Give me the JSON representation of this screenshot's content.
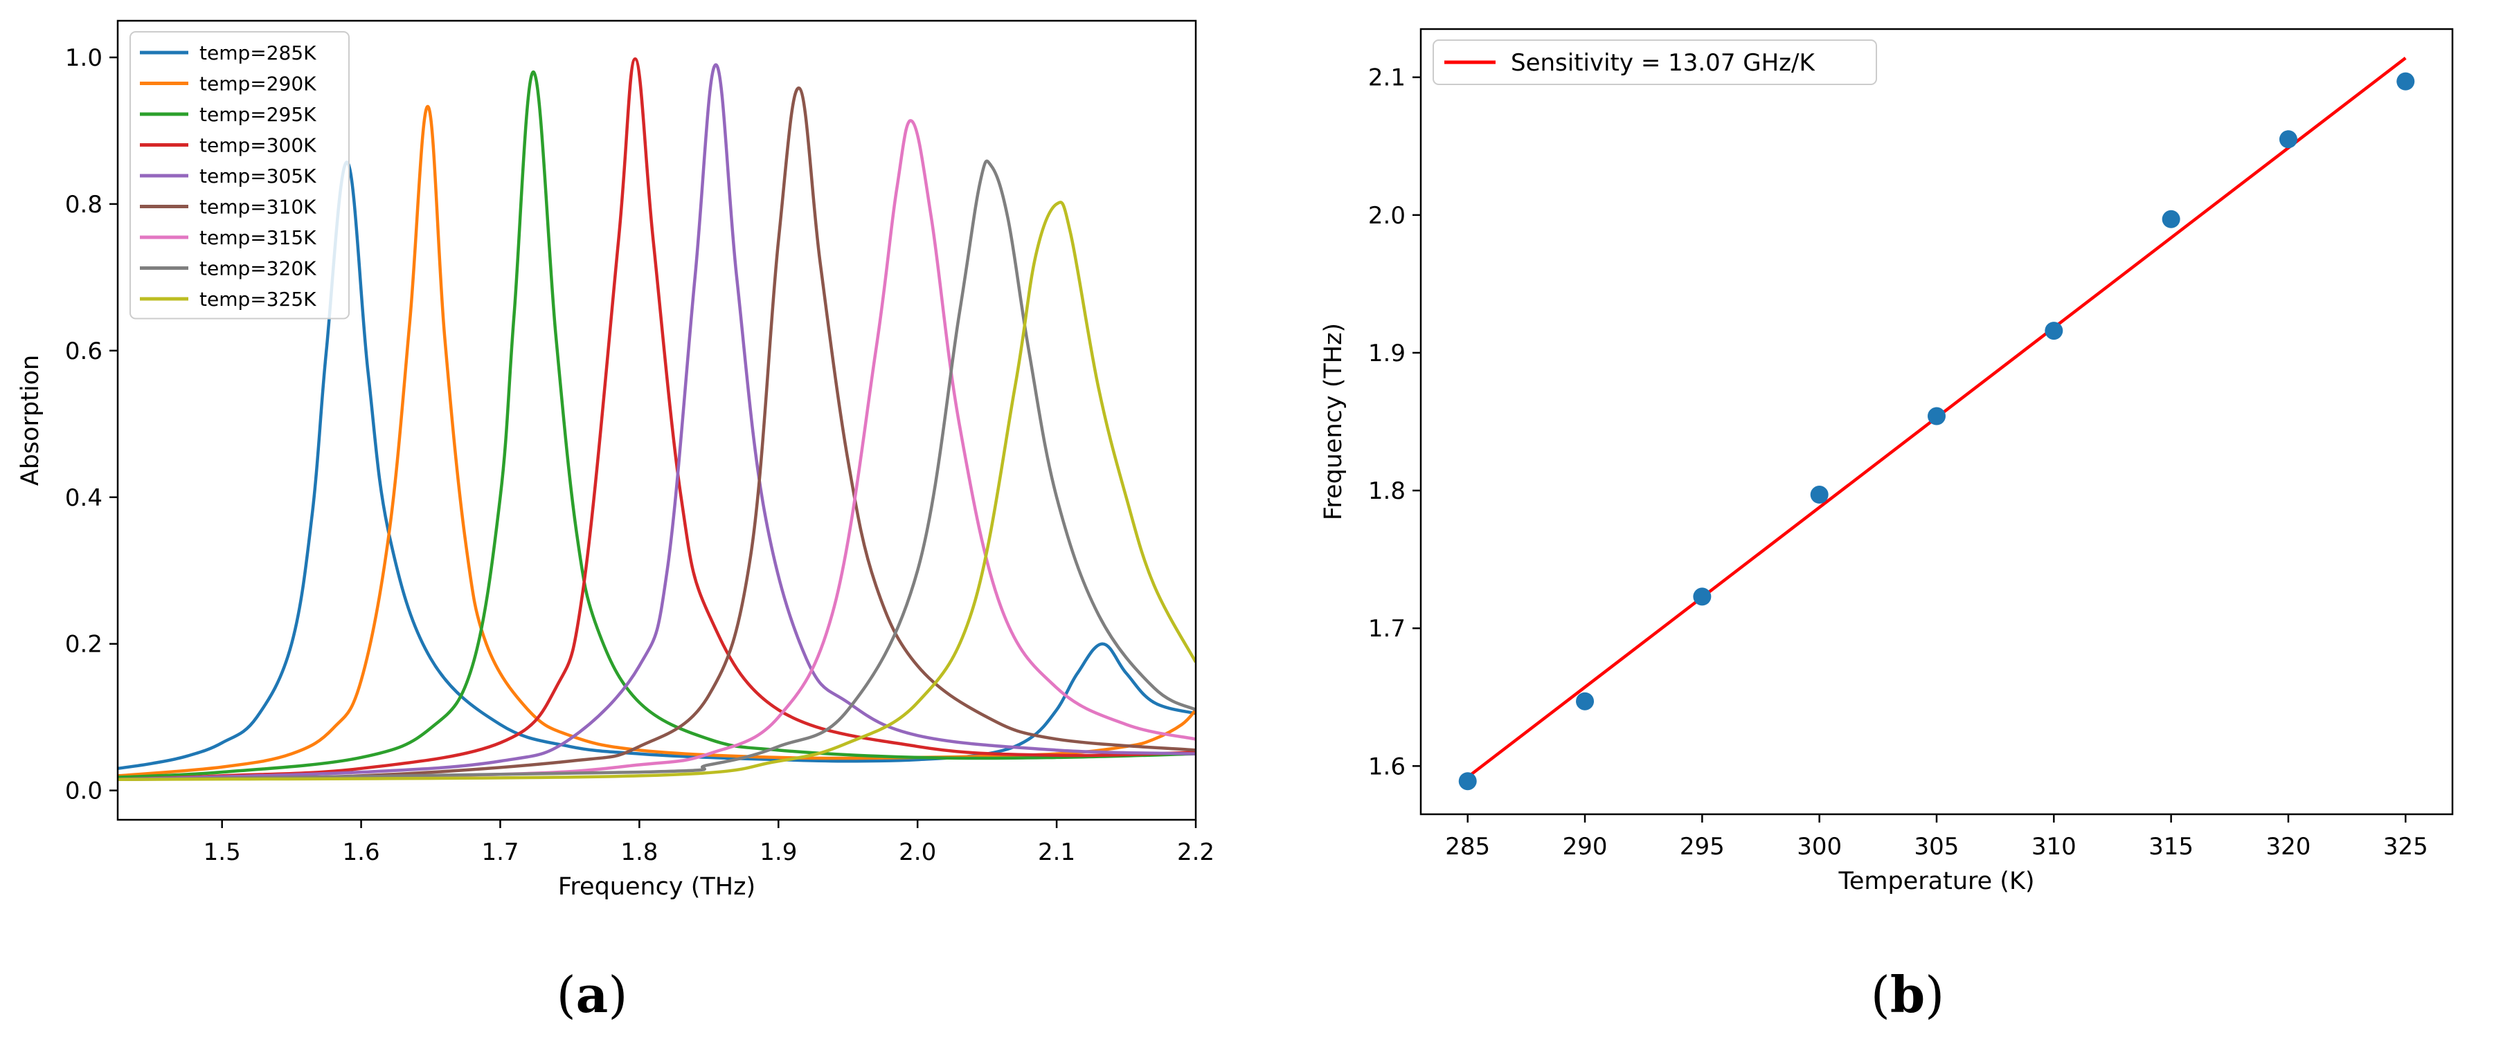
{
  "captions": {
    "a": "a",
    "b": "b"
  },
  "chart_data": [
    {
      "id": "a",
      "type": "line",
      "title": "",
      "xlabel": "Frequency (THz)",
      "ylabel": "Absorption",
      "xlim": [
        1.425,
        2.2
      ],
      "ylim": [
        -0.04,
        1.05
      ],
      "xticks": [
        1.5,
        1.6,
        1.7,
        1.8,
        1.9,
        2.0,
        2.1,
        2.2
      ],
      "xtick_labels": [
        "1.5",
        "1.6",
        "1.7",
        "1.8",
        "1.9",
        "2.0",
        "2.1",
        "2.2"
      ],
      "yticks": [
        0.0,
        0.2,
        0.4,
        0.6,
        0.8,
        1.0
      ],
      "ytick_labels": [
        "0.0",
        "0.2",
        "0.4",
        "0.6",
        "0.8",
        "1.0"
      ],
      "grid": false,
      "legend_position": "top-left",
      "series": [
        {
          "name": "temp=285K",
          "color": "#1f77b4",
          "x": [
            1.425,
            1.45,
            1.475,
            1.5,
            1.525,
            1.55,
            1.565,
            1.575,
            1.59,
            1.605,
            1.62,
            1.65,
            1.7,
            1.75,
            1.8,
            1.85,
            1.9,
            1.95,
            2.0,
            2.05,
            2.08,
            2.1,
            2.115,
            2.133,
            2.15,
            2.17,
            2.2
          ],
          "y": [
            0.03,
            0.037,
            0.047,
            0.065,
            0.1,
            0.2,
            0.38,
            0.6,
            0.857,
            0.57,
            0.35,
            0.18,
            0.09,
            0.06,
            0.05,
            0.045,
            0.042,
            0.04,
            0.042,
            0.05,
            0.07,
            0.11,
            0.16,
            0.2,
            0.16,
            0.12,
            0.105
          ]
        },
        {
          "name": "temp=290K",
          "color": "#ff7f0e",
          "x": [
            1.425,
            1.5,
            1.55,
            1.58,
            1.6,
            1.62,
            1.635,
            1.648,
            1.66,
            1.675,
            1.69,
            1.72,
            1.75,
            1.8,
            1.9,
            2.0,
            2.1,
            2.15,
            2.17,
            2.19,
            2.2
          ],
          "y": [
            0.02,
            0.032,
            0.05,
            0.085,
            0.15,
            0.35,
            0.64,
            0.933,
            0.62,
            0.34,
            0.2,
            0.11,
            0.075,
            0.055,
            0.045,
            0.045,
            0.05,
            0.06,
            0.07,
            0.09,
            0.11
          ]
        },
        {
          "name": "temp=295K",
          "color": "#2ca02c",
          "x": [
            1.425,
            1.5,
            1.6,
            1.65,
            1.68,
            1.7,
            1.71,
            1.724,
            1.74,
            1.755,
            1.77,
            1.8,
            1.85,
            1.9,
            2.0,
            2.1,
            2.2
          ],
          "y": [
            0.018,
            0.025,
            0.045,
            0.085,
            0.17,
            0.4,
            0.65,
            0.98,
            0.62,
            0.35,
            0.22,
            0.12,
            0.07,
            0.055,
            0.045,
            0.045,
            0.05
          ]
        },
        {
          "name": "temp=300K",
          "color": "#d62728",
          "x": [
            1.425,
            1.5,
            1.6,
            1.7,
            1.74,
            1.76,
            1.785,
            1.797,
            1.81,
            1.83,
            1.85,
            1.9,
            2.0,
            2.1,
            2.2
          ],
          "y": [
            0.015,
            0.02,
            0.03,
            0.065,
            0.14,
            0.28,
            0.75,
            0.998,
            0.75,
            0.4,
            0.24,
            0.11,
            0.06,
            0.048,
            0.052
          ]
        },
        {
          "name": "temp=305K",
          "color": "#9467bd",
          "x": [
            1.425,
            1.6,
            1.7,
            1.75,
            1.8,
            1.82,
            1.84,
            1.855,
            1.87,
            1.89,
            1.92,
            1.95,
            2.0,
            2.1,
            2.2
          ],
          "y": [
            0.015,
            0.025,
            0.04,
            0.07,
            0.17,
            0.3,
            0.7,
            0.99,
            0.7,
            0.38,
            0.18,
            0.12,
            0.075,
            0.055,
            0.05
          ]
        },
        {
          "name": "temp=310K",
          "color": "#8c564b",
          "x": [
            1.425,
            1.6,
            1.75,
            1.8,
            1.85,
            1.88,
            1.9,
            1.915,
            1.93,
            1.95,
            1.97,
            2.0,
            2.05,
            2.1,
            2.2
          ],
          "y": [
            0.015,
            0.02,
            0.04,
            0.06,
            0.13,
            0.32,
            0.75,
            0.958,
            0.72,
            0.45,
            0.28,
            0.17,
            0.1,
            0.07,
            0.055
          ]
        },
        {
          "name": "temp=315K",
          "color": "#e377c2",
          "x": [
            1.425,
            1.7,
            1.8,
            1.85,
            1.9,
            1.94,
            1.97,
            1.985,
            1.996,
            2.01,
            2.03,
            2.06,
            2.1,
            2.15,
            2.2
          ],
          "y": [
            0.015,
            0.022,
            0.035,
            0.05,
            0.1,
            0.25,
            0.6,
            0.82,
            0.913,
            0.78,
            0.5,
            0.25,
            0.14,
            0.09,
            0.07
          ]
        },
        {
          "name": "temp=320K",
          "color": "#7f7f7f",
          "x": [
            1.425,
            1.8,
            1.85,
            1.9,
            1.95,
            2.0,
            2.03,
            2.045,
            2.053,
            2.065,
            2.08,
            2.1,
            2.13,
            2.17,
            2.2
          ],
          "y": [
            0.015,
            0.025,
            0.035,
            0.06,
            0.11,
            0.3,
            0.65,
            0.83,
            0.852,
            0.78,
            0.6,
            0.4,
            0.24,
            0.14,
            0.11
          ]
        },
        {
          "name": "temp=325K",
          "color": "#bcbd22",
          "x": [
            1.425,
            1.8,
            1.9,
            1.95,
            2.0,
            2.04,
            2.07,
            2.085,
            2.1,
            2.11,
            2.13,
            2.15,
            2.17,
            2.2
          ],
          "y": [
            0.015,
            0.02,
            0.04,
            0.065,
            0.12,
            0.25,
            0.55,
            0.73,
            0.8,
            0.76,
            0.55,
            0.4,
            0.28,
            0.175
          ]
        }
      ]
    },
    {
      "id": "b",
      "type": "scatter",
      "title": "",
      "xlabel": "Temperature (K)",
      "ylabel": "Frequency (THz)",
      "xlim": [
        283,
        327
      ],
      "ylim": [
        1.565,
        2.135
      ],
      "xticks": [
        285,
        290,
        295,
        300,
        305,
        310,
        315,
        320,
        325
      ],
      "xtick_labels": [
        "285",
        "290",
        "295",
        "300",
        "305",
        "310",
        "315",
        "320",
        "325"
      ],
      "yticks": [
        1.6,
        1.7,
        1.8,
        1.9,
        2.0,
        2.1
      ],
      "ytick_labels": [
        "1.6",
        "1.7",
        "1.8",
        "1.9",
        "2.0",
        "2.1"
      ],
      "grid": false,
      "legend_position": "top-left",
      "points": {
        "color": "#1f77b4",
        "x": [
          285,
          290,
          295,
          300,
          305,
          310,
          315,
          320,
          325
        ],
        "y": [
          1.589,
          1.647,
          1.723,
          1.797,
          1.854,
          1.916,
          1.997,
          2.055,
          2.097
        ]
      },
      "fit": {
        "name": "Sensitivity = 13.07 GHz/K",
        "color": "#ff0000",
        "x": [
          285,
          325
        ],
        "y": [
          1.592,
          2.114
        ]
      }
    }
  ]
}
